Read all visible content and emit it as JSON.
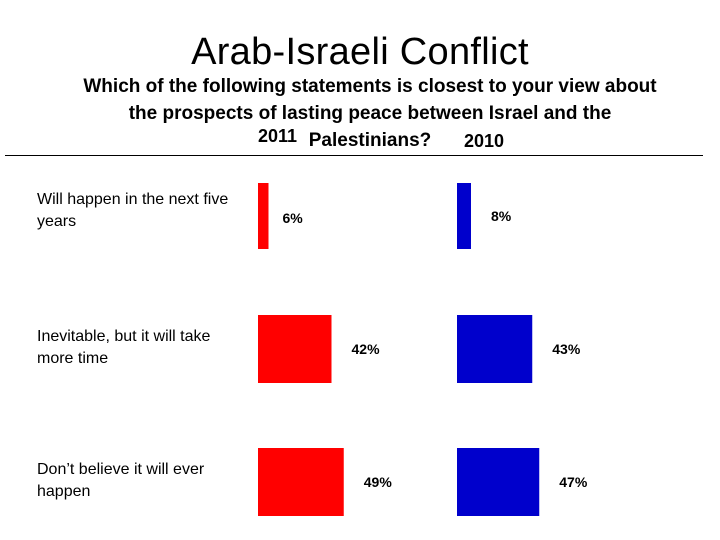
{
  "title": "Arab-Israeli Conflict",
  "subtitle": "Which of the following statements is closest to your view about the prospects of lasting peace between Israel and the Palestinians?",
  "chart_data": {
    "type": "bar",
    "categories": [
      "Will happen in the next five years",
      "Inevitable, but it will take more time",
      "Don’t believe it will ever happen"
    ],
    "series": [
      {
        "name": "2011",
        "color": "#ff0000",
        "values": [
          6,
          42,
          49
        ],
        "labels": [
          "6%",
          "42%",
          "49%"
        ]
      },
      {
        "name": "2010",
        "color": "#0000cc",
        "values": [
          8,
          43,
          47
        ],
        "labels": [
          "8%",
          "43%",
          "47%"
        ]
      }
    ],
    "unit": "%",
    "grid": false
  }
}
